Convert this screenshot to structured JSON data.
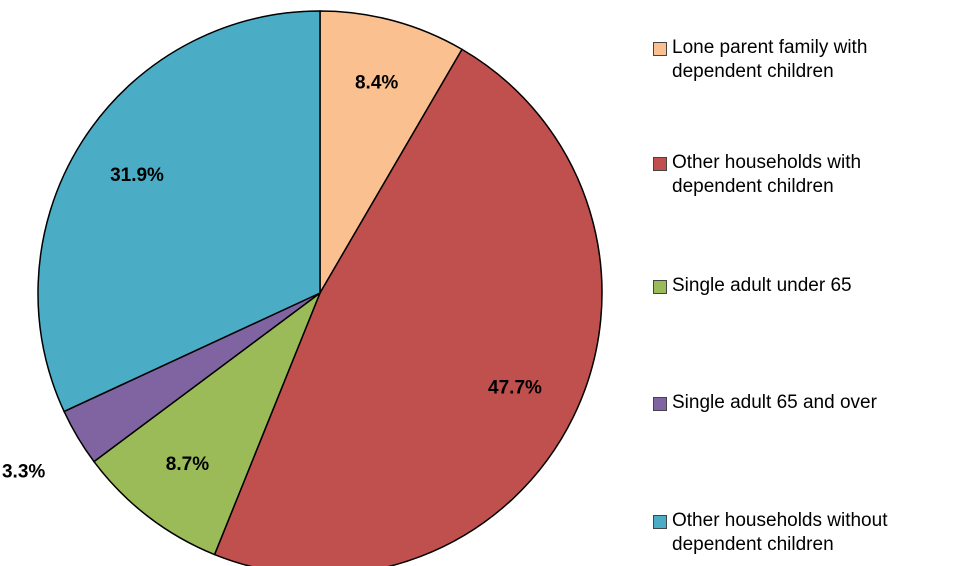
{
  "chart_data": {
    "type": "pie",
    "categories": [
      "Lone parent family with dependent children",
      "Other households with dependent children",
      "Single adult under 65",
      "Single adult 65 and over",
      "Other households without dependent children"
    ],
    "values": [
      8.4,
      47.7,
      8.7,
      3.3,
      31.9
    ],
    "value_labels": [
      "8.4%",
      "47.7%",
      "8.7%",
      "3.3%",
      "31.9%"
    ],
    "colors": [
      "#FAC090",
      "#C0504D",
      "#9BBB59",
      "#8064A2",
      "#4BACC6"
    ],
    "legend": "right"
  }
}
